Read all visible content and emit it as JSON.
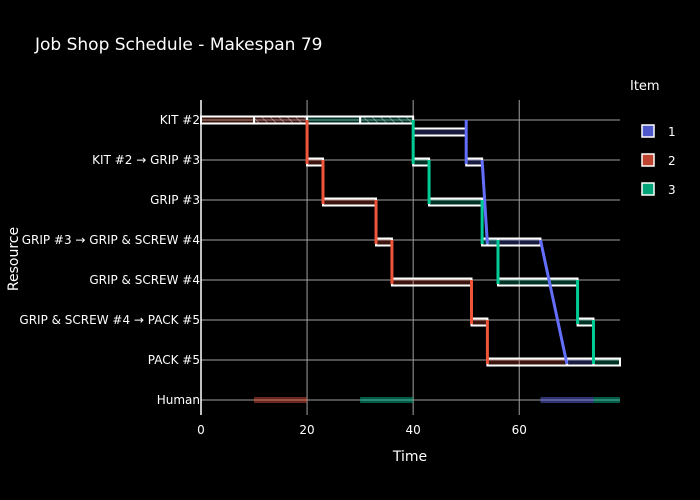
{
  "chart_data": {
    "type": "gantt",
    "title": "Job Shop Schedule - Makespan 79",
    "xlabel": "Time",
    "ylabel": "Resource",
    "xlim": [
      0,
      79
    ],
    "x_ticks": [
      0,
      20,
      40,
      60
    ],
    "resources": [
      "KIT #2",
      "KIT #2 → GRIP #3",
      "GRIP #3",
      "GRIP #3 → GRIP & SCREW #4",
      "GRIP & SCREW #4",
      "GRIP & SCREW #4 → PACK #5",
      "PACK #5",
      "Human"
    ],
    "legend_title": "Item",
    "legend_position": "right",
    "series": [
      {
        "name": "1",
        "color": "#636efa",
        "tasks": [
          {
            "resource": "KIT #2",
            "start": 40,
            "end": 50
          },
          {
            "resource": "KIT #2 → GRIP #3",
            "start": 50,
            "end": 53
          },
          {
            "resource": "GRIP #3 → GRIP & SCREW #4",
            "start": 54,
            "end": 64
          },
          {
            "resource": "PACK #5",
            "start": 69,
            "end": 74
          }
        ],
        "human_tasks": [
          {
            "start": 64,
            "end": 69
          },
          {
            "start": 69,
            "end": 74
          }
        ]
      },
      {
        "name": "2",
        "color": "#ef553b",
        "tasks": [
          {
            "resource": "KIT #2",
            "start": 0,
            "end": 10
          },
          {
            "resource": "KIT #2",
            "start": 10,
            "end": 20
          },
          {
            "resource": "KIT #2 → GRIP #3",
            "start": 20,
            "end": 23
          },
          {
            "resource": "GRIP #3",
            "start": 23,
            "end": 33
          },
          {
            "resource": "GRIP #3 → GRIP & SCREW #4",
            "start": 33,
            "end": 36
          },
          {
            "resource": "GRIP & SCREW #4",
            "start": 36,
            "end": 51
          },
          {
            "resource": "GRIP & SCREW #4 → PACK #5",
            "start": 51,
            "end": 54
          },
          {
            "resource": "PACK #5",
            "start": 54,
            "end": 69
          }
        ],
        "human_tasks": [
          {
            "start": 10,
            "end": 20
          }
        ]
      },
      {
        "name": "3",
        "color": "#00cc96",
        "tasks": [
          {
            "resource": "KIT #2",
            "start": 20,
            "end": 30
          },
          {
            "resource": "KIT #2",
            "start": 30,
            "end": 40
          },
          {
            "resource": "KIT #2 → GRIP #3",
            "start": 40,
            "end": 43
          },
          {
            "resource": "GRIP #3",
            "start": 43,
            "end": 53
          },
          {
            "resource": "GRIP #3 → GRIP & SCREW #4",
            "start": 53,
            "end": 56
          },
          {
            "resource": "GRIP & SCREW #4",
            "start": 56,
            "end": 71
          },
          {
            "resource": "GRIP & SCREW #4 → PACK #5",
            "start": 71,
            "end": 74
          },
          {
            "resource": "PACK #5",
            "start": 74,
            "end": 79
          }
        ],
        "human_tasks": [
          {
            "start": 30,
            "end": 40
          },
          {
            "start": 74,
            "end": 79
          }
        ]
      }
    ]
  }
}
